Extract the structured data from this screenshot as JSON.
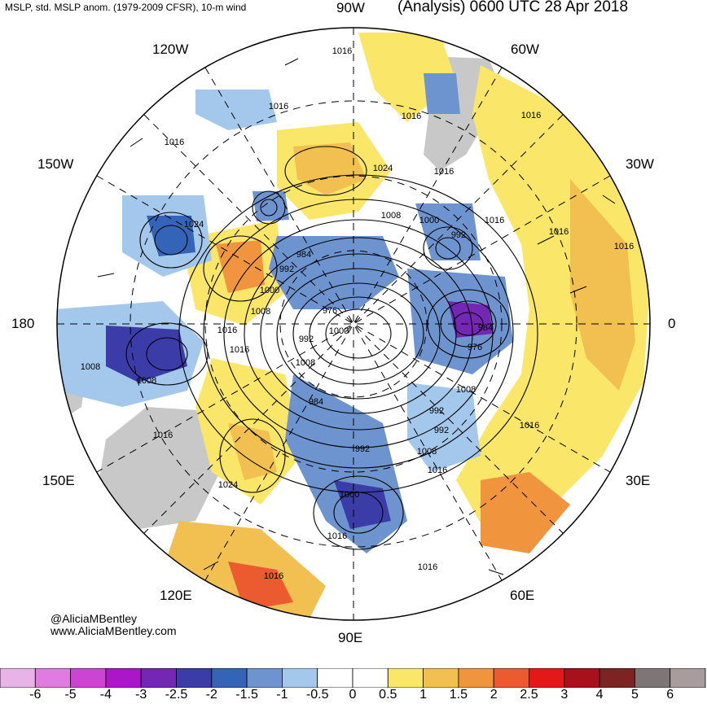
{
  "header": {
    "left": "MSLP, std. MSLP anom. (1979-2009 CFSR), 10-m wind",
    "right": "(Analysis) 0600 UTC 28 Apr 2018"
  },
  "longitudes": {
    "lon_90w": "90W",
    "lon_120w": "120W",
    "lon_60w": "60W",
    "lon_150w": "150W",
    "lon_30w": "30W",
    "lon_180": "180",
    "lon_0": "0",
    "lon_150e": "150E",
    "lon_30e": "30E",
    "lon_120e": "120E",
    "lon_60e": "60E",
    "lon_90e": "90E"
  },
  "isobar_labels": [
    "1016",
    "1016",
    "1016",
    "1016",
    "1016",
    "1016",
    "1016",
    "1016",
    "1024",
    "1024",
    "1024",
    "1008",
    "1008",
    "1008",
    "1008",
    "1008",
    "1008",
    "1008",
    "1000",
    "1000",
    "1000",
    "1000",
    "992",
    "992",
    "992",
    "992",
    "992",
    "992",
    "984",
    "984",
    "984",
    "976",
    "976",
    "1016",
    "1016",
    "1016",
    "1016",
    "1016",
    "1016",
    "1016",
    "1016",
    "1016"
  ],
  "credit": {
    "handle": "@AliciaMBentley",
    "site": "www.AliciaMBentley.com"
  },
  "colorbar": {
    "labels": [
      "-6",
      "-5",
      "-4",
      "-3",
      "-2.5",
      "-2",
      "-1.5",
      "-1",
      "-0.5",
      "0",
      "0.5",
      "1",
      "1.5",
      "2",
      "2.5",
      "3",
      "4",
      "5",
      "6"
    ],
    "colors": [
      "#e8b4e8",
      "#e07ce0",
      "#cc44d4",
      "#aa16c8",
      "#7426b4",
      "#3c3ca8",
      "#3464b8",
      "#6e94d0",
      "#a4c8ec",
      "#ffffff",
      "#ffffff",
      "#fae668",
      "#f2c050",
      "#f0943e",
      "#ec5a30",
      "#e41818",
      "#a8101c",
      "#7c2424",
      "#7e7676",
      "#a89c9c"
    ]
  },
  "map_colors": {
    "land": "#c8c8c8",
    "warm_1": "#fae668",
    "warm_2": "#f2c050",
    "warm_3": "#f0943e",
    "warm_4": "#ec5a30",
    "cool_1": "#a4c8ec",
    "cool_2": "#6e94d0",
    "cool_3": "#3464b8",
    "cool_4": "#3c3ca8",
    "cool_5": "#7426b4",
    "cool_6": "#aa16c8",
    "isobar": "#000000"
  }
}
